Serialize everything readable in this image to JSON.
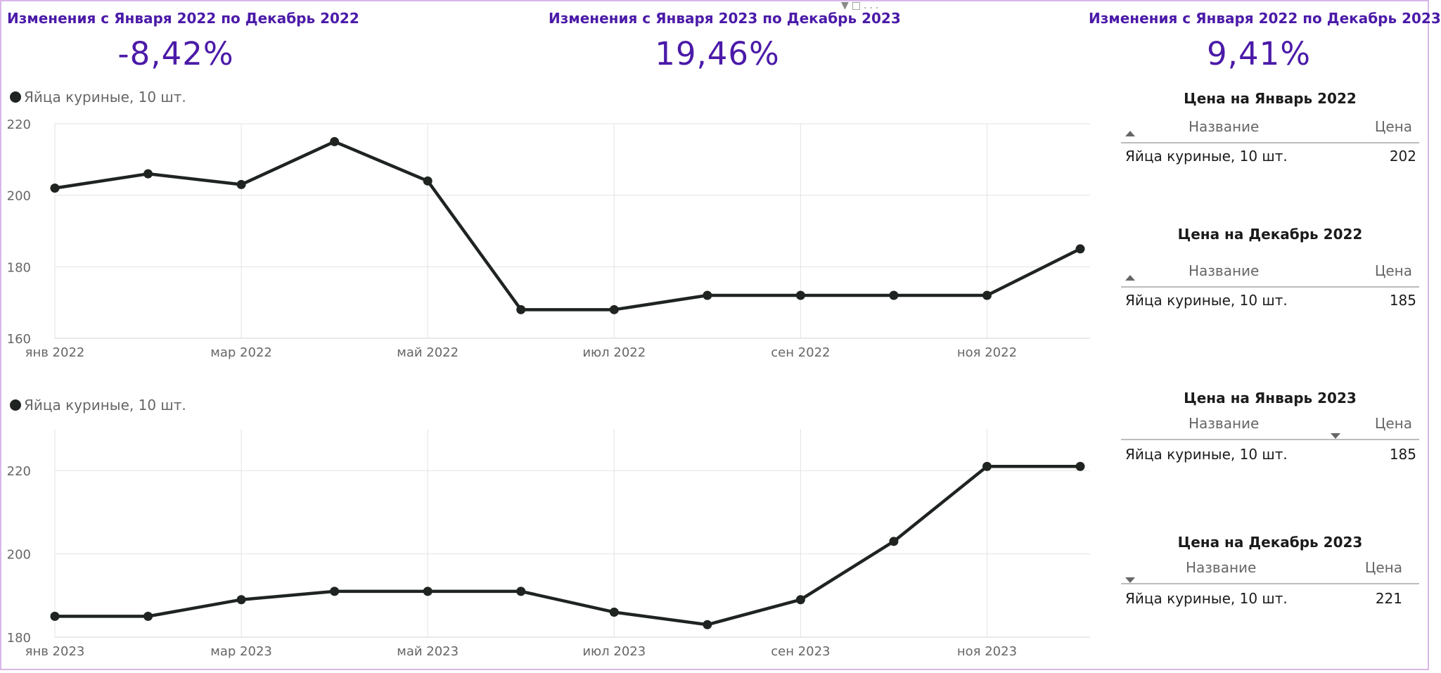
{
  "kpis": [
    {
      "title": "Изменения с Января 2022 по Декабрь 2022",
      "value": "-8,42%"
    },
    {
      "title": "Изменения с Января 2023 по Декабрь 2023",
      "value": "19,46%"
    },
    {
      "title": "Изменения с Января 2022 по Декабрь 2023",
      "value": "9,41%"
    }
  ],
  "toolbar": {
    "icons": [
      "filter-icon",
      "focus-mode-icon",
      "more-options-icon"
    ],
    "more_label": "..."
  },
  "chart_data": [
    {
      "type": "line",
      "legend": "Яйца куриные, 10 шт.",
      "x": [
        "янв 2022",
        "фев 2022",
        "мар 2022",
        "апр 2022",
        "май 2022",
        "июн 2022",
        "июл 2022",
        "авг 2022",
        "сен 2022",
        "окт 2022",
        "ноя 2022",
        "дек 2022"
      ],
      "xticks": [
        "янв 2022",
        "мар 2022",
        "май 2022",
        "июл 2022",
        "сен 2022",
        "ноя 2022"
      ],
      "series": [
        {
          "name": "Яйца куриные, 10 шт.",
          "values": [
            202,
            206,
            203,
            215,
            204,
            168,
            168,
            172,
            172,
            172,
            172,
            185
          ]
        }
      ],
      "yticks": [
        160,
        180,
        200,
        220
      ],
      "ylim": [
        160,
        220
      ],
      "color": "#1f2421",
      "grid": true
    },
    {
      "type": "line",
      "legend": "Яйца куриные, 10 шт.",
      "x": [
        "янв 2023",
        "фев 2023",
        "мар 2023",
        "апр 2023",
        "май 2023",
        "июн 2023",
        "июл 2023",
        "авг 2023",
        "сен 2023",
        "окт 2023",
        "ноя 2023",
        "дек 2023"
      ],
      "xticks": [
        "янв 2023",
        "мар 2023",
        "май 2023",
        "июл 2023",
        "сен 2023",
        "ноя 2023"
      ],
      "series": [
        {
          "name": "Яйца куриные, 10 шт.",
          "values": [
            185,
            185,
            189,
            191,
            191,
            191,
            186,
            183,
            189,
            203,
            221,
            221
          ]
        }
      ],
      "yticks": [
        180,
        200,
        220
      ],
      "ylim": [
        180,
        230
      ],
      "color": "#1f2421",
      "grid": true
    }
  ],
  "tables": [
    {
      "title": "Цена на Январь 2022",
      "col_name": "Название",
      "col_price": "Цена",
      "sort": "up-name",
      "rows": [
        {
          "name": "Яйца куриные, 10 шт.",
          "price": "202"
        }
      ]
    },
    {
      "title": "Цена на Декабрь 2022",
      "col_name": "Название",
      "col_price": "Цена",
      "sort": "up-name",
      "rows": [
        {
          "name": "Яйца куриные, 10 шт.",
          "price": "185"
        }
      ]
    },
    {
      "title": "Цена на Январь 2023",
      "col_name": "Название",
      "col_price": "Цена",
      "sort": "down-price",
      "rows": [
        {
          "name": "Яйца куриные, 10 шт.",
          "price": "185"
        }
      ]
    },
    {
      "title": "Цена на Декабрь 2023",
      "col_name": "Название",
      "col_price": "Цена",
      "sort": "down-name",
      "rows": [
        {
          "name": "Яйца куриные, 10 шт.",
          "price": "221"
        }
      ]
    }
  ],
  "colors": {
    "accent": "#4b1aa8",
    "line": "#1f2421",
    "grid": "#e3e3e3",
    "border": "#d9b7e8"
  }
}
